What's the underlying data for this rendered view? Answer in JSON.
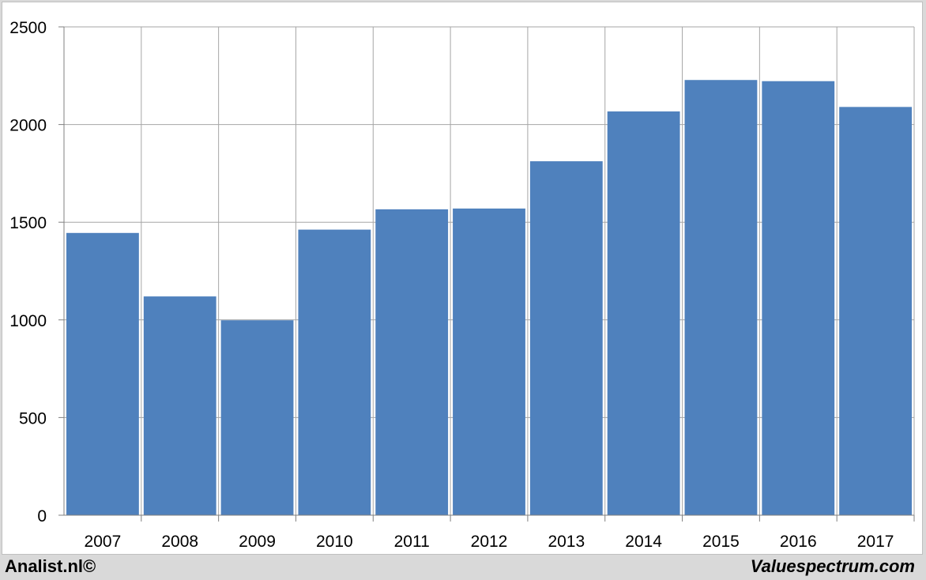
{
  "chart_data": {
    "type": "bar",
    "categories": [
      "2007",
      "2008",
      "2009",
      "2010",
      "2011",
      "2012",
      "2013",
      "2014",
      "2015",
      "2016",
      "2017"
    ],
    "values": [
      1445,
      1120,
      998,
      1462,
      1566,
      1570,
      1812,
      2067,
      2228,
      2222,
      2090
    ],
    "ylim": [
      0,
      2500
    ],
    "yticks": [
      0,
      500,
      1000,
      1500,
      2000,
      2500
    ],
    "grid": true,
    "bar_color": "#4f81bd",
    "title": "",
    "xlabel": "",
    "ylabel": ""
  },
  "footer": {
    "left": "Analist.nl©",
    "right": "Valuespectrum.com"
  }
}
